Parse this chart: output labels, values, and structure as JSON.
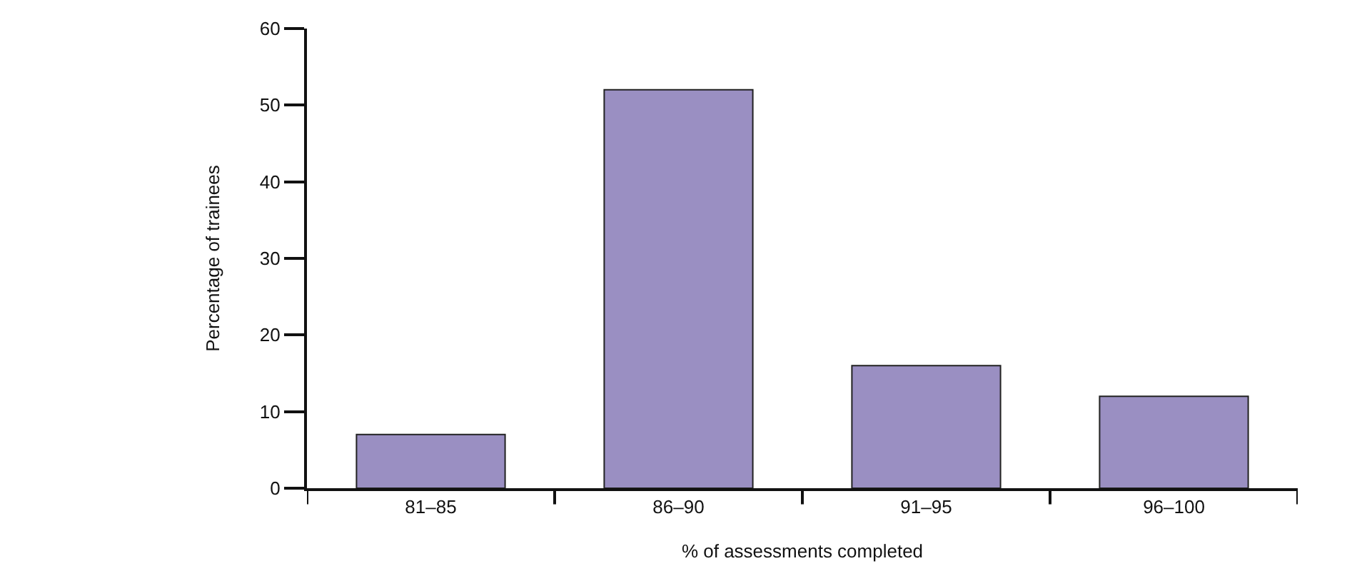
{
  "chart_data": {
    "type": "bar",
    "categories": [
      "81–85",
      "86–90",
      "91–95",
      "96–100"
    ],
    "values": [
      7,
      52,
      16,
      12
    ],
    "color": "#9a8fc2",
    "xlabel": "% of assessments completed",
    "ylabel": "Percentage of trainees",
    "ylim": [
      0,
      60
    ],
    "yticks": [
      0,
      10,
      20,
      30,
      40,
      50,
      60
    ],
    "grid": false
  }
}
